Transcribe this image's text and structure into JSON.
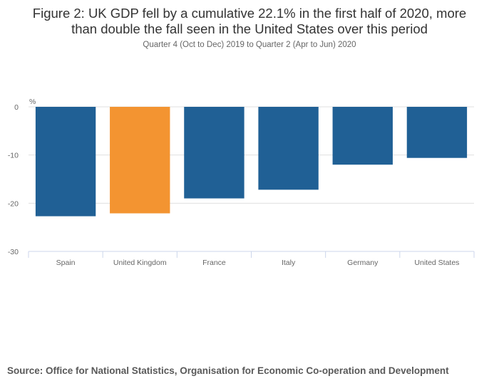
{
  "chart_data": {
    "type": "bar",
    "title": "Figure 2: UK GDP fell by a cumulative 22.1% in the first half of 2020, more than double the fall seen in the United States over this period",
    "title_lines": [
      "Figure 2: UK GDP fell by a cumulative 22.1% in the first half of 2020, more",
      "than double the fall seen in the United States over this period"
    ],
    "subtitle": "Quarter 4 (Oct to Dec) 2019 to Quarter 2 (Apr to Jun) 2020",
    "xlabel": "",
    "ylabel": "%",
    "categories": [
      "Spain",
      "United Kingdom",
      "France",
      "Italy",
      "Germany",
      "United States"
    ],
    "values": [
      -22.7,
      -22.1,
      -19.0,
      -17.2,
      -12.0,
      -10.6
    ],
    "highlight_category": "United Kingdom",
    "ylim": [
      -30,
      0
    ],
    "yticks": [
      0,
      -10,
      -20,
      -30
    ],
    "ytick_labels": [
      "0",
      "-10",
      "-20",
      "-30"
    ],
    "grid": true,
    "legend": "none",
    "colors": {
      "default": "#206095",
      "highlight": "#f39431",
      "grid": "#e0e0e0",
      "axis": "#ccd6eb"
    }
  },
  "source": "Source: Office for National Statistics, Organisation for Economic Co-operation and Development"
}
